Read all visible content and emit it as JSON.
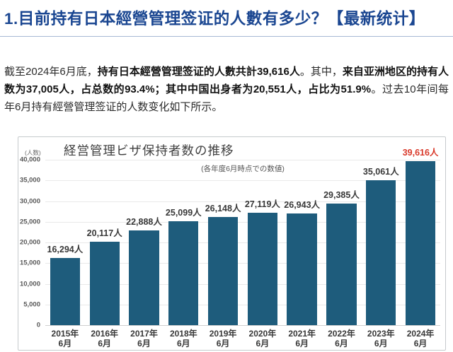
{
  "page": {
    "title": "1.目前持有日本經營管理签证的人數有多少？【最新统计】",
    "accent_color": "#1a4691"
  },
  "intro": {
    "seg1": "截至2024年6月底，",
    "seg2": "持有日本經營管理签证的人數共計39,616人",
    "seg3": "。其中，",
    "seg4": "来自亚洲地区的持有人数为37,005人，占总数的93.4%；其中中国出身者为20,551人，占比为51.9%",
    "seg5": "。过去10年间每年6月持有經營管理签证的人数变化如下所示。"
  },
  "chart_data": {
    "type": "bar",
    "title": "経営管理ビザ保持者数の推移",
    "subtitle": "(各年度6月時点での数値)",
    "ylabel": "(人数)",
    "xlabel": "",
    "ylim": [
      0,
      40000
    ],
    "ytick_step": 5000,
    "ytick_labels": [
      "40,000",
      "35,000",
      "30,000",
      "25,000",
      "20,000",
      "15,000",
      "10,000",
      "5,000",
      "0"
    ],
    "grid": true,
    "legend": null,
    "categories": [
      [
        "2015年",
        "6月"
      ],
      [
        "2016年",
        "6月"
      ],
      [
        "2017年",
        "6月"
      ],
      [
        "2018年",
        "6月"
      ],
      [
        "2019年",
        "6月"
      ],
      [
        "2020年",
        "6月"
      ],
      [
        "2021年",
        "6月"
      ],
      [
        "2022年",
        "6月"
      ],
      [
        "2023年",
        "6月"
      ],
      [
        "2024年",
        "6月"
      ]
    ],
    "values": [
      16294,
      20117,
      22888,
      25099,
      26148,
      27119,
      26943,
      29385,
      35061,
      39616
    ],
    "value_labels": [
      "16,294人",
      "20,117人",
      "22,888人",
      "25,099人",
      "26,148人",
      "27,119人",
      "26,943人",
      "29,385人",
      "35,061人",
      "39,616人"
    ],
    "highlight_index": 9,
    "colors": {
      "bar": "#1e5c7c",
      "value_label": "#383838",
      "highlight_label": "#d9392a",
      "grid": "#e9e9e9",
      "axis_text": "#595959"
    }
  }
}
